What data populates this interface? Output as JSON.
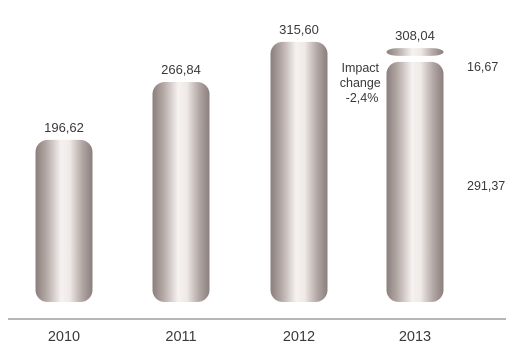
{
  "chart_data": {
    "type": "bar",
    "categories": [
      "2010",
      "2011",
      "2012",
      "2013"
    ],
    "values": [
      196.62,
      266.84,
      315.6,
      308.04
    ],
    "value_labels": [
      "196,62",
      "266,84",
      "315,60",
      "308,04"
    ],
    "stacked_last": {
      "bottom": {
        "value": 291.37,
        "label": "291,37"
      },
      "top": {
        "value": 16.67,
        "label": "16,67"
      }
    },
    "annotation": [
      "Impact",
      "change",
      "-2,4%"
    ],
    "ylim": [
      0,
      330
    ],
    "grid": false,
    "legend": "none",
    "colors": {
      "bar_dark": "#8a7f7c",
      "bar_mid": "#c5bbb7",
      "bar_light": "#f6f2f1",
      "text": "#3a3a3a",
      "axis": "#6f6f6f"
    }
  }
}
